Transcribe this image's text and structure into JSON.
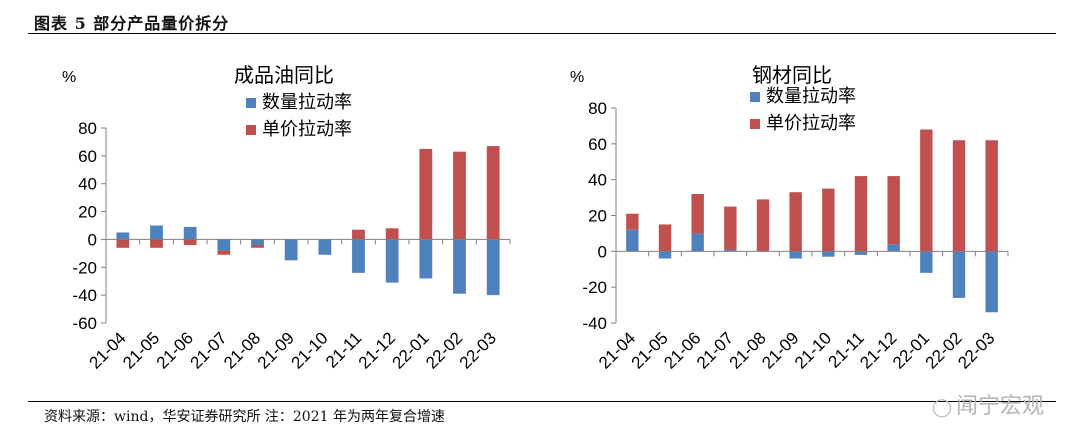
{
  "figure": {
    "title": "图表 5 部分产品量价拆分",
    "source": "资料来源：wind，华安证券研究所 注：2021 年为两年复合增速",
    "watermark": "闻宁宏观",
    "watermark_icon": "wechat-icon"
  },
  "colors": {
    "volume": "#4F81BD",
    "price": "#C0504D",
    "axis": "#808080"
  },
  "chart_data": [
    {
      "type": "bar",
      "stacked": true,
      "title": "成品油同比",
      "ylabel": "%",
      "ylim": [
        -60,
        80
      ],
      "yticks": [
        80,
        60,
        40,
        20,
        0,
        -20,
        -40,
        -60
      ],
      "legend_position": "top-right",
      "categories": [
        "21-04",
        "21-05",
        "21-06",
        "21-07",
        "21-08",
        "21-09",
        "21-10",
        "21-11",
        "21-12",
        "22-01",
        "22-02",
        "22-03"
      ],
      "series": [
        {
          "name": "数量拉动率",
          "values": [
            5,
            10,
            9,
            -8,
            -4,
            -15,
            -11,
            -24,
            -31,
            -28,
            -39,
            -40
          ]
        },
        {
          "name": "单价拉动率",
          "values": [
            -6,
            -6,
            -4,
            -3,
            -2,
            0,
            0,
            7,
            8,
            65,
            63,
            67
          ]
        }
      ]
    },
    {
      "type": "bar",
      "stacked": true,
      "title": "钢材同比",
      "ylabel": "%",
      "ylim": [
        -40,
        80
      ],
      "yticks": [
        80,
        60,
        40,
        20,
        0,
        -20,
        -40
      ],
      "legend_position": "top-right",
      "categories": [
        "21-04",
        "21-05",
        "21-06",
        "21-07",
        "21-08",
        "21-09",
        "21-10",
        "21-11",
        "21-12",
        "22-01",
        "22-02",
        "22-03"
      ],
      "series": [
        {
          "name": "数量拉动率",
          "values": [
            12,
            -4,
            10,
            1,
            0,
            -4,
            -3,
            -2,
            4,
            -12,
            -26,
            -34
          ]
        },
        {
          "name": "单价拉动率",
          "values": [
            9,
            15,
            22,
            24,
            29,
            33,
            35,
            42,
            38,
            68,
            62,
            62
          ]
        }
      ]
    }
  ]
}
